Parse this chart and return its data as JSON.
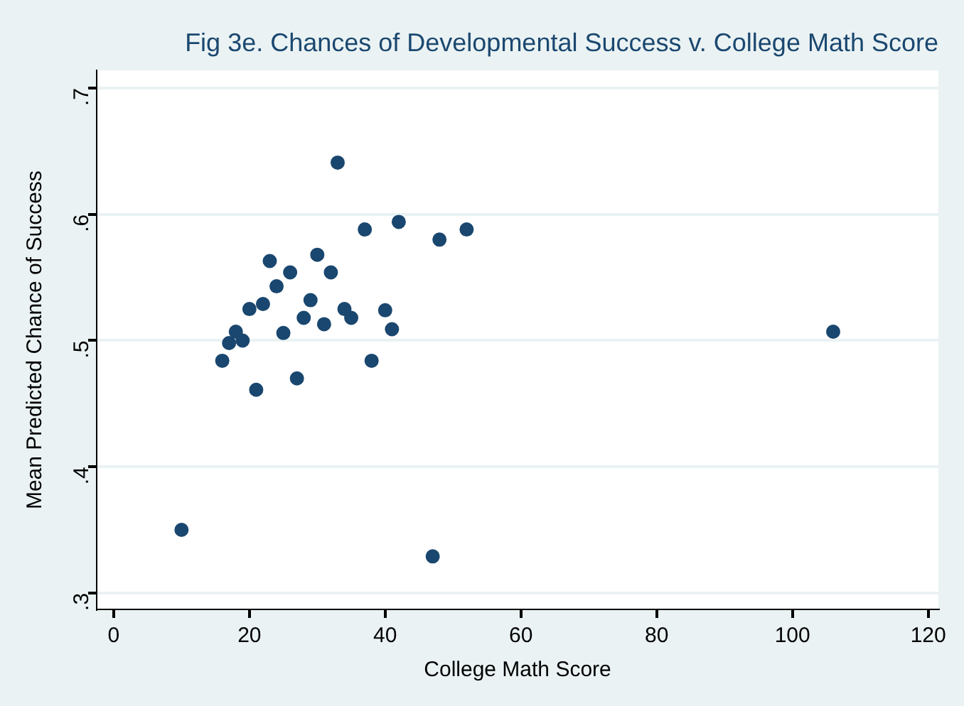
{
  "chart_data": {
    "type": "scatter",
    "title": "Fig 3e. Chances of Developmental Success v. College Math Score",
    "xlabel": "College Math Score",
    "ylabel": "Mean Predicted Chance of Success",
    "x": [
      10,
      47,
      106,
      33,
      37,
      42,
      48,
      52,
      30,
      23,
      26,
      32,
      24,
      29,
      20,
      22,
      34,
      40,
      28,
      35,
      31,
      41,
      25,
      18,
      17,
      19,
      16,
      38,
      27,
      21
    ],
    "values": [
      0.35,
      0.329,
      0.507,
      0.641,
      0.588,
      0.594,
      0.58,
      0.588,
      0.568,
      0.563,
      0.554,
      0.554,
      0.543,
      0.532,
      0.525,
      0.529,
      0.525,
      0.524,
      0.518,
      0.518,
      0.513,
      0.509,
      0.506,
      0.507,
      0.498,
      0.5,
      0.484,
      0.484,
      0.47,
      0.461
    ],
    "color": "#1a476f",
    "marker": "circle",
    "grid": "y",
    "legend": false,
    "xlim": [
      -2.5,
      121.5
    ],
    "xticks": [
      0,
      20,
      40,
      60,
      80,
      100,
      120
    ],
    "ylim": [
      0.287,
      0.714
    ],
    "yticks": [
      {
        "value": 0.3,
        "label": ".3"
      },
      {
        "value": 0.4,
        "label": ".4"
      },
      {
        "value": 0.5,
        "label": ".5"
      },
      {
        "value": 0.6,
        "label": ".6"
      },
      {
        "value": 0.7,
        "label": ".7"
      }
    ]
  }
}
